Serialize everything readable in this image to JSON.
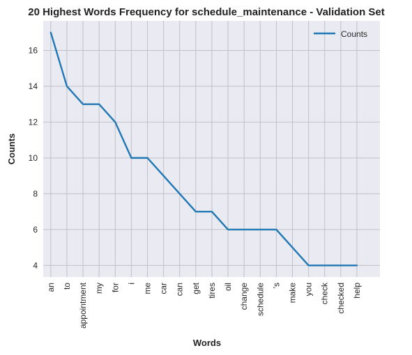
{
  "chart_data": {
    "type": "line",
    "title": "20 Highest Words Frequency for schedule_maintenance - Validation Set",
    "xlabel": "Words",
    "ylabel": "Counts",
    "categories": [
      "an",
      "to",
      "appointment",
      "my",
      "for",
      "i",
      "me",
      "car",
      "can",
      "get",
      "tires",
      "oil",
      "change",
      "schedule",
      "'s",
      "make",
      "you",
      "check",
      "checked",
      "help"
    ],
    "series": [
      {
        "name": "Counts",
        "values": [
          17,
          14,
          13,
          13,
          12,
          10,
          10,
          9,
          8,
          7,
          7,
          6,
          6,
          6,
          6,
          5,
          4,
          4,
          4,
          4
        ]
      }
    ],
    "ylim": [
      3.35,
      17.65
    ],
    "yticks": [
      4,
      6,
      8,
      10,
      12,
      14,
      16
    ],
    "grid": true,
    "legend_position": "top-right",
    "colors": {
      "line": "#1f77b4",
      "plot_background": "#eaeaf2",
      "grid": "#c0c0c8"
    }
  }
}
